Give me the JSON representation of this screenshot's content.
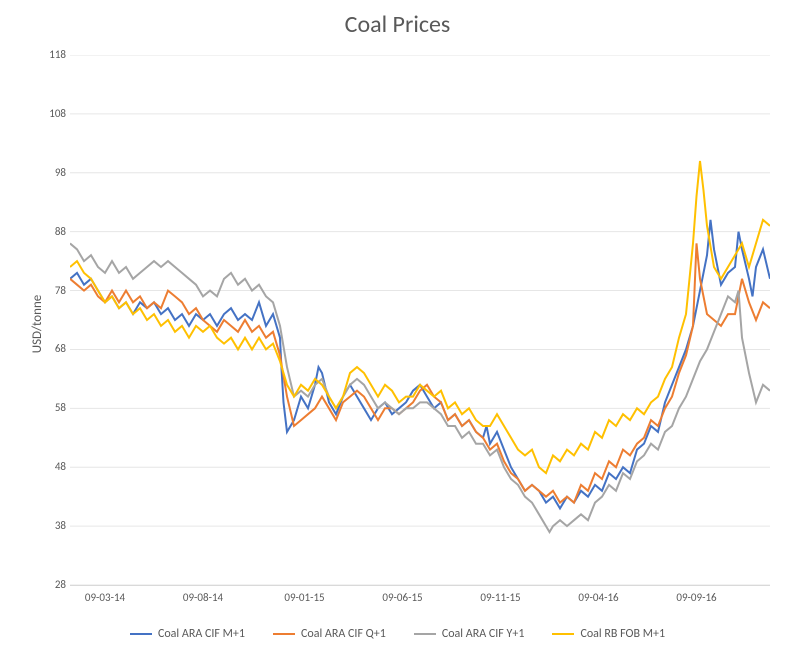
{
  "chart": {
    "type": "line",
    "title": "Coal Prices",
    "title_fontsize": 24,
    "ylabel": "USD/tonne",
    "label_fontsize": 13,
    "background_color": "#ffffff",
    "grid_color": "#e6e6e6",
    "text_color": "#595959",
    "ylim": [
      28,
      118
    ],
    "ytick_step": 10,
    "yticks": [
      28,
      38,
      48,
      58,
      68,
      78,
      88,
      98,
      108,
      118
    ],
    "x_dates": [
      "09-03-14",
      "09-08-14",
      "09-01-15",
      "09-06-15",
      "09-11-15",
      "09-04-16",
      "09-09-16"
    ],
    "x_positions": [
      0.05,
      0.19,
      0.335,
      0.475,
      0.615,
      0.755,
      0.895
    ],
    "legend": [
      {
        "label": "Coal ARA CIF M+1",
        "color": "#4472c4"
      },
      {
        "label": "Coal ARA CIF Q+1",
        "color": "#ed7d31"
      },
      {
        "label": "Coal ARA CIF Y+1",
        "color": "#a5a5a5"
      },
      {
        "label": "Coal RB FOB M+1",
        "color": "#ffc000"
      }
    ],
    "series": [
      {
        "name": "Coal ARA CIF M+1",
        "color": "#4472c4",
        "x": [
          0.0,
          0.01,
          0.02,
          0.03,
          0.04,
          0.05,
          0.06,
          0.07,
          0.08,
          0.09,
          0.1,
          0.11,
          0.12,
          0.13,
          0.14,
          0.15,
          0.16,
          0.17,
          0.18,
          0.19,
          0.2,
          0.21,
          0.22,
          0.23,
          0.24,
          0.25,
          0.26,
          0.27,
          0.28,
          0.29,
          0.3,
          0.302,
          0.305,
          0.31,
          0.32,
          0.33,
          0.34,
          0.35,
          0.355,
          0.36,
          0.37,
          0.38,
          0.39,
          0.4,
          0.41,
          0.42,
          0.43,
          0.44,
          0.45,
          0.46,
          0.47,
          0.48,
          0.49,
          0.5,
          0.51,
          0.52,
          0.53,
          0.54,
          0.55,
          0.56,
          0.57,
          0.58,
          0.59,
          0.595,
          0.6,
          0.61,
          0.62,
          0.63,
          0.64,
          0.65,
          0.66,
          0.67,
          0.68,
          0.69,
          0.7,
          0.71,
          0.72,
          0.73,
          0.74,
          0.75,
          0.76,
          0.77,
          0.78,
          0.79,
          0.8,
          0.81,
          0.82,
          0.83,
          0.84,
          0.85,
          0.86,
          0.87,
          0.88,
          0.89,
          0.9,
          0.91,
          0.915,
          0.92,
          0.93,
          0.94,
          0.95,
          0.955,
          0.96,
          0.97,
          0.975,
          0.98,
          0.99,
          1.0
        ],
        "y": [
          80,
          81,
          79,
          80,
          78,
          76,
          77,
          75,
          76,
          74,
          76,
          75,
          76,
          74,
          75,
          73,
          74,
          72,
          74,
          73,
          74,
          72,
          74,
          75,
          73,
          74,
          73,
          76,
          72,
          74,
          70,
          65,
          59,
          54,
          56,
          60,
          58,
          62,
          65,
          64,
          59,
          57,
          60,
          62,
          60,
          58,
          56,
          58,
          59,
          57,
          58,
          59,
          61,
          62,
          60,
          58,
          59,
          56,
          57,
          55,
          56,
          54,
          53,
          55,
          52,
          54,
          51,
          48,
          46,
          44,
          45,
          44,
          42,
          43,
          41,
          43,
          42,
          44,
          43,
          45,
          44,
          47,
          46,
          48,
          47,
          51,
          52,
          55,
          54,
          59,
          62,
          65,
          68,
          72,
          78,
          84,
          90,
          85,
          79,
          81,
          82,
          88,
          85,
          80,
          77,
          82,
          85,
          80
        ]
      },
      {
        "name": "Coal ARA CIF Q+1",
        "color": "#ed7d31",
        "x": [
          0.0,
          0.01,
          0.02,
          0.03,
          0.04,
          0.05,
          0.06,
          0.07,
          0.08,
          0.09,
          0.1,
          0.11,
          0.12,
          0.13,
          0.14,
          0.15,
          0.16,
          0.17,
          0.18,
          0.19,
          0.2,
          0.21,
          0.22,
          0.23,
          0.24,
          0.25,
          0.26,
          0.27,
          0.28,
          0.29,
          0.3,
          0.31,
          0.32,
          0.33,
          0.34,
          0.35,
          0.36,
          0.37,
          0.38,
          0.39,
          0.4,
          0.41,
          0.42,
          0.43,
          0.44,
          0.45,
          0.46,
          0.47,
          0.48,
          0.49,
          0.5,
          0.51,
          0.52,
          0.53,
          0.54,
          0.55,
          0.56,
          0.57,
          0.58,
          0.59,
          0.6,
          0.61,
          0.62,
          0.63,
          0.64,
          0.65,
          0.66,
          0.67,
          0.68,
          0.69,
          0.7,
          0.71,
          0.72,
          0.73,
          0.74,
          0.75,
          0.76,
          0.77,
          0.78,
          0.79,
          0.8,
          0.81,
          0.82,
          0.83,
          0.84,
          0.85,
          0.86,
          0.87,
          0.88,
          0.89,
          0.895,
          0.9,
          0.91,
          0.92,
          0.93,
          0.94,
          0.95,
          0.96,
          0.97,
          0.98,
          0.99,
          1.0
        ],
        "y": [
          80,
          79,
          78,
          79,
          77,
          76,
          78,
          76,
          78,
          76,
          77,
          75,
          76,
          75,
          78,
          77,
          76,
          74,
          75,
          73,
          72,
          71,
          73,
          72,
          71,
          73,
          71,
          72,
          70,
          71,
          67,
          60,
          55,
          56,
          57,
          58,
          60,
          58,
          56,
          59,
          60,
          61,
          60,
          58,
          56,
          58,
          58,
          57,
          58,
          59,
          61,
          62,
          60,
          59,
          56,
          57,
          55,
          56,
          54,
          53,
          51,
          52,
          49,
          47,
          46,
          44,
          45,
          44,
          43,
          44,
          42,
          43,
          42,
          45,
          44,
          47,
          46,
          49,
          48,
          51,
          50,
          52,
          53,
          56,
          55,
          58,
          60,
          64,
          67,
          72,
          86,
          80,
          74,
          73,
          72,
          74,
          74,
          80,
          76,
          73,
          76,
          75
        ]
      },
      {
        "name": "Coal ARA CIF Y+1",
        "color": "#a5a5a5",
        "x": [
          0.0,
          0.01,
          0.02,
          0.03,
          0.04,
          0.05,
          0.06,
          0.07,
          0.08,
          0.09,
          0.1,
          0.11,
          0.12,
          0.13,
          0.14,
          0.15,
          0.16,
          0.17,
          0.18,
          0.19,
          0.2,
          0.21,
          0.22,
          0.23,
          0.24,
          0.25,
          0.26,
          0.27,
          0.28,
          0.29,
          0.3,
          0.31,
          0.32,
          0.33,
          0.34,
          0.35,
          0.36,
          0.37,
          0.38,
          0.39,
          0.4,
          0.41,
          0.42,
          0.43,
          0.44,
          0.45,
          0.46,
          0.47,
          0.48,
          0.49,
          0.5,
          0.51,
          0.52,
          0.53,
          0.54,
          0.55,
          0.56,
          0.57,
          0.58,
          0.59,
          0.6,
          0.61,
          0.62,
          0.63,
          0.64,
          0.65,
          0.66,
          0.67,
          0.68,
          0.685,
          0.69,
          0.7,
          0.71,
          0.72,
          0.73,
          0.74,
          0.75,
          0.76,
          0.77,
          0.78,
          0.79,
          0.8,
          0.81,
          0.82,
          0.83,
          0.84,
          0.85,
          0.86,
          0.87,
          0.88,
          0.89,
          0.9,
          0.91,
          0.92,
          0.93,
          0.94,
          0.95,
          0.955,
          0.96,
          0.97,
          0.98,
          0.99,
          1.0
        ],
        "y": [
          86,
          85,
          83,
          84,
          82,
          81,
          83,
          81,
          82,
          80,
          81,
          82,
          83,
          82,
          83,
          82,
          81,
          80,
          79,
          77,
          78,
          77,
          80,
          81,
          79,
          80,
          78,
          79,
          77,
          76,
          72,
          65,
          60,
          61,
          60,
          62,
          63,
          60,
          58,
          60,
          62,
          63,
          62,
          60,
          58,
          59,
          58,
          57,
          58,
          58,
          59,
          59,
          58,
          57,
          55,
          55,
          53,
          54,
          52,
          52,
          50,
          51,
          48,
          46,
          45,
          43,
          42,
          40,
          38,
          37,
          38,
          39,
          38,
          39,
          40,
          39,
          42,
          43,
          45,
          44,
          47,
          46,
          49,
          50,
          52,
          51,
          54,
          55,
          58,
          60,
          63,
          66,
          68,
          71,
          74,
          77,
          76,
          78,
          70,
          64,
          59,
          62,
          61
        ]
      },
      {
        "name": "Coal RB FOB M+1",
        "color": "#ffc000",
        "x": [
          0.0,
          0.01,
          0.02,
          0.03,
          0.04,
          0.05,
          0.06,
          0.07,
          0.08,
          0.09,
          0.1,
          0.11,
          0.12,
          0.13,
          0.14,
          0.15,
          0.16,
          0.17,
          0.18,
          0.19,
          0.2,
          0.21,
          0.22,
          0.23,
          0.24,
          0.25,
          0.26,
          0.27,
          0.28,
          0.29,
          0.3,
          0.31,
          0.32,
          0.33,
          0.34,
          0.35,
          0.36,
          0.37,
          0.38,
          0.39,
          0.4,
          0.41,
          0.42,
          0.43,
          0.44,
          0.45,
          0.46,
          0.47,
          0.48,
          0.49,
          0.5,
          0.51,
          0.52,
          0.53,
          0.54,
          0.55,
          0.56,
          0.57,
          0.58,
          0.59,
          0.6,
          0.61,
          0.62,
          0.63,
          0.64,
          0.65,
          0.66,
          0.67,
          0.68,
          0.69,
          0.7,
          0.71,
          0.72,
          0.73,
          0.74,
          0.75,
          0.76,
          0.77,
          0.78,
          0.79,
          0.8,
          0.81,
          0.82,
          0.83,
          0.84,
          0.85,
          0.86,
          0.87,
          0.88,
          0.885,
          0.89,
          0.895,
          0.9,
          0.905,
          0.91,
          0.92,
          0.93,
          0.94,
          0.95,
          0.96,
          0.97,
          0.98,
          0.99,
          1.0
        ],
        "y": [
          82,
          83,
          81,
          80,
          78,
          76,
          77,
          75,
          76,
          74,
          75,
          73,
          74,
          72,
          73,
          71,
          72,
          70,
          72,
          71,
          72,
          70,
          69,
          70,
          68,
          70,
          68,
          70,
          68,
          69,
          66,
          62,
          60,
          62,
          61,
          63,
          62,
          60,
          58,
          60,
          64,
          65,
          64,
          62,
          60,
          62,
          61,
          59,
          60,
          60,
          62,
          61,
          60,
          61,
          58,
          59,
          57,
          58,
          56,
          55,
          55,
          57,
          55,
          53,
          51,
          50,
          51,
          48,
          47,
          50,
          49,
          51,
          50,
          52,
          51,
          54,
          53,
          56,
          55,
          57,
          56,
          58,
          57,
          59,
          60,
          63,
          65,
          70,
          74,
          80,
          86,
          94,
          100,
          95,
          89,
          82,
          80,
          82,
          84,
          86,
          82,
          86,
          90,
          89
        ]
      }
    ]
  }
}
